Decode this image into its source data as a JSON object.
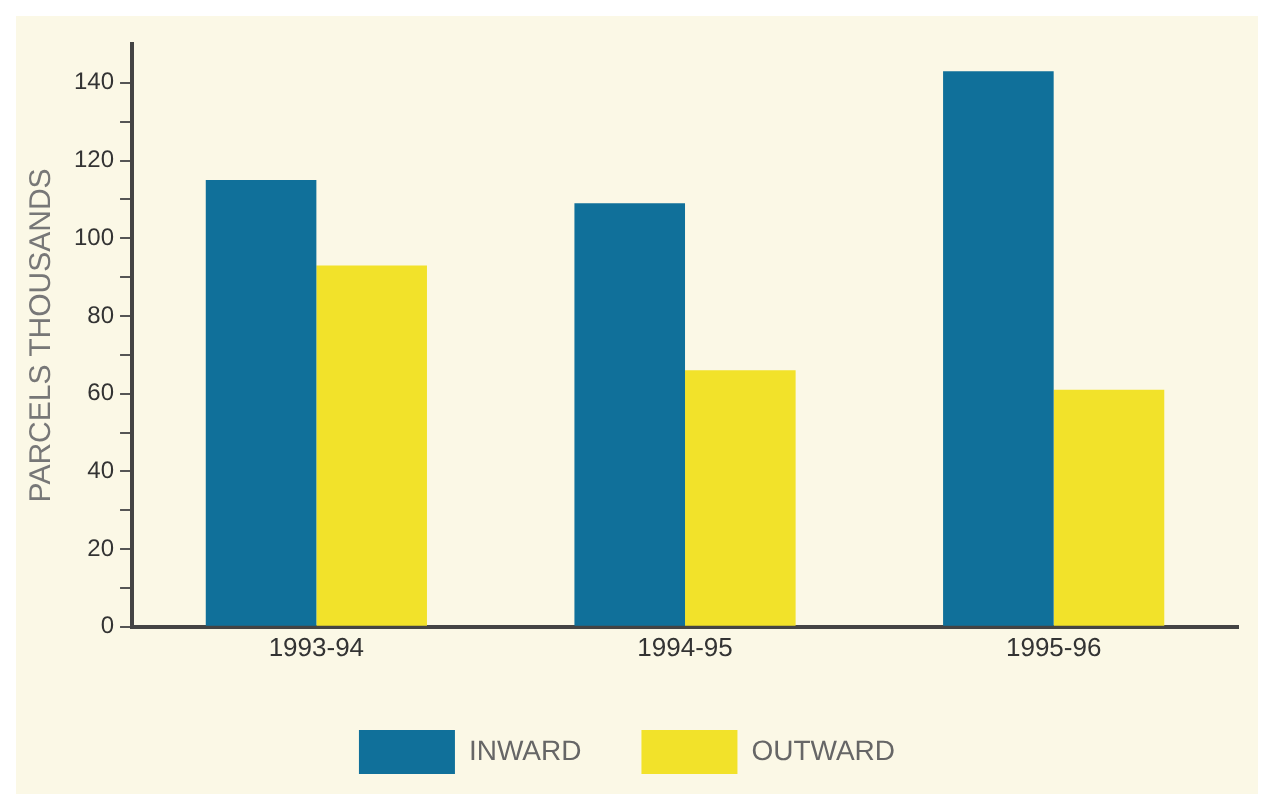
{
  "chart_data": {
    "type": "bar",
    "ylabel": "PARCELS THOUSANDS",
    "categories": [
      "1993-94",
      "1994-95",
      "1995-96"
    ],
    "series": [
      {
        "name": "INWARD",
        "color": "#10709a",
        "values": [
          115,
          109,
          143
        ]
      },
      {
        "name": "OUTWARD",
        "color": "#f2e22a",
        "values": [
          93,
          66,
          61
        ]
      }
    ],
    "ylim": [
      0,
      150
    ],
    "yticks": [
      0,
      {
        "value": 10,
        "label": null
      },
      20,
      {
        "value": 30,
        "label": null
      },
      40,
      {
        "value": 50,
        "label": null
      },
      60,
      {
        "value": 70,
        "label": null
      },
      80,
      {
        "value": 90,
        "label": null
      },
      100,
      {
        "value": 110,
        "label": null
      },
      120,
      {
        "value": 130,
        "label": null
      },
      140
    ],
    "grid": false,
    "legend": "bottom"
  }
}
